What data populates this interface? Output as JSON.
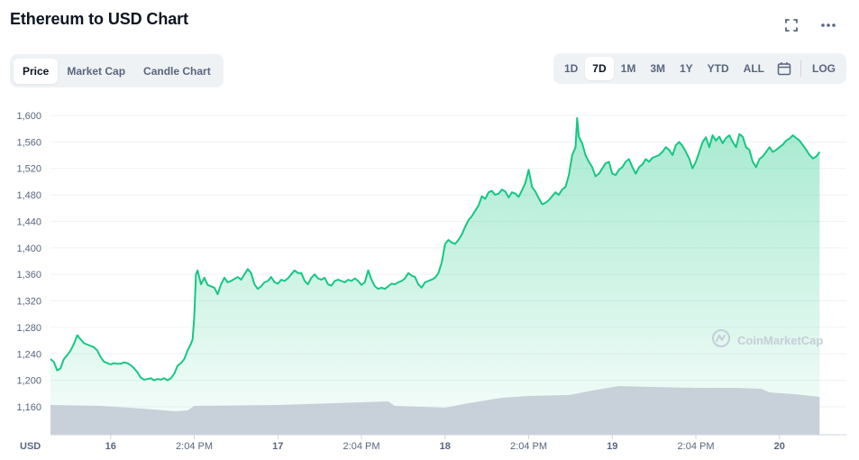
{
  "header": {
    "title": "Ethereum to USD Chart"
  },
  "icons": {
    "fullscreen": "fullscreen-icon",
    "more": "more-horizontal-icon",
    "calendar": "calendar-icon"
  },
  "tabs": [
    {
      "label": "Price",
      "active": true
    },
    {
      "label": "Market Cap",
      "active": false
    },
    {
      "label": "Candle Chart",
      "active": false
    }
  ],
  "ranges": [
    {
      "label": "1D",
      "active": false
    },
    {
      "label": "7D",
      "active": true
    },
    {
      "label": "1M",
      "active": false
    },
    {
      "label": "3M",
      "active": false
    },
    {
      "label": "1Y",
      "active": false
    },
    {
      "label": "YTD",
      "active": false
    },
    {
      "label": "ALL",
      "active": false
    }
  ],
  "log_label": "LOG",
  "watermark": "CoinMarketCap",
  "colors": {
    "line": "#16c784",
    "area_top": "#16c784",
    "volume": "#c3cbd6",
    "grid": "#eff2f5"
  },
  "chart_data": {
    "type": "line",
    "title": "Ethereum to USD Chart",
    "currency_label": "USD",
    "y_ticks": [
      "1,600",
      "1,560",
      "1,520",
      "1,480",
      "1,440",
      "1,400",
      "1,360",
      "1,320",
      "1,280",
      "1,240",
      "1,200",
      "1,160"
    ],
    "ylim": [
      1135,
      1605
    ],
    "xlim": [
      0,
      4.76
    ],
    "x_ticks": [
      {
        "x": 0.36,
        "label": "16",
        "day": true
      },
      {
        "x": 0.86,
        "label": "2:04 PM",
        "day": false
      },
      {
        "x": 1.36,
        "label": "17",
        "day": true
      },
      {
        "x": 1.86,
        "label": "2:04 PM",
        "day": false
      },
      {
        "x": 2.36,
        "label": "18",
        "day": true
      },
      {
        "x": 2.86,
        "label": "2:04 PM",
        "day": false
      },
      {
        "x": 3.36,
        "label": "19",
        "day": true
      },
      {
        "x": 3.86,
        "label": "2:04 PM",
        "day": false
      },
      {
        "x": 4.36,
        "label": "20",
        "day": true
      }
    ],
    "grid": true,
    "series": [
      {
        "values": [
          [
            0.0,
            1232
          ],
          [
            0.02,
            1228
          ],
          [
            0.04,
            1215
          ],
          [
            0.06,
            1218
          ],
          [
            0.08,
            1232
          ],
          [
            0.1,
            1238
          ],
          [
            0.12,
            1245
          ],
          [
            0.14,
            1255
          ],
          [
            0.16,
            1268
          ],
          [
            0.18,
            1262
          ],
          [
            0.2,
            1256
          ],
          [
            0.22,
            1254
          ],
          [
            0.24,
            1252
          ],
          [
            0.26,
            1250
          ],
          [
            0.28,
            1245
          ],
          [
            0.3,
            1235
          ],
          [
            0.32,
            1228
          ],
          [
            0.34,
            1226
          ],
          [
            0.36,
            1224
          ],
          [
            0.38,
            1226
          ],
          [
            0.4,
            1225
          ],
          [
            0.42,
            1225
          ],
          [
            0.44,
            1227
          ],
          [
            0.46,
            1226
          ],
          [
            0.48,
            1223
          ],
          [
            0.5,
            1218
          ],
          [
            0.52,
            1212
          ],
          [
            0.54,
            1204
          ],
          [
            0.56,
            1201
          ],
          [
            0.58,
            1202
          ],
          [
            0.6,
            1203
          ],
          [
            0.62,
            1200
          ],
          [
            0.64,
            1202
          ],
          [
            0.66,
            1201
          ],
          [
            0.68,
            1203
          ],
          [
            0.7,
            1200
          ],
          [
            0.72,
            1203
          ],
          [
            0.74,
            1210
          ],
          [
            0.76,
            1222
          ],
          [
            0.78,
            1226
          ],
          [
            0.8,
            1232
          ],
          [
            0.82,
            1245
          ],
          [
            0.84,
            1255
          ],
          [
            0.85,
            1262
          ],
          [
            0.86,
            1295
          ],
          [
            0.87,
            1360
          ],
          [
            0.88,
            1366
          ],
          [
            0.9,
            1345
          ],
          [
            0.92,
            1355
          ],
          [
            0.94,
            1344
          ],
          [
            0.96,
            1342
          ],
          [
            0.98,
            1340
          ],
          [
            1.0,
            1330
          ],
          [
            1.02,
            1345
          ],
          [
            1.04,
            1355
          ],
          [
            1.06,
            1348
          ],
          [
            1.08,
            1350
          ],
          [
            1.1,
            1353
          ],
          [
            1.12,
            1356
          ],
          [
            1.14,
            1352
          ],
          [
            1.16,
            1360
          ],
          [
            1.18,
            1368
          ],
          [
            1.2,
            1362
          ],
          [
            1.22,
            1345
          ],
          [
            1.24,
            1338
          ],
          [
            1.26,
            1342
          ],
          [
            1.28,
            1348
          ],
          [
            1.3,
            1350
          ],
          [
            1.32,
            1356
          ],
          [
            1.34,
            1348
          ],
          [
            1.36,
            1346
          ],
          [
            1.38,
            1352
          ],
          [
            1.4,
            1350
          ],
          [
            1.42,
            1354
          ],
          [
            1.44,
            1360
          ],
          [
            1.46,
            1366
          ],
          [
            1.48,
            1362
          ],
          [
            1.5,
            1362
          ],
          [
            1.52,
            1350
          ],
          [
            1.54,
            1345
          ],
          [
            1.56,
            1355
          ],
          [
            1.58,
            1360
          ],
          [
            1.6,
            1354
          ],
          [
            1.62,
            1352
          ],
          [
            1.64,
            1355
          ],
          [
            1.66,
            1345
          ],
          [
            1.68,
            1343
          ],
          [
            1.7,
            1350
          ],
          [
            1.72,
            1352
          ],
          [
            1.74,
            1350
          ],
          [
            1.76,
            1348
          ],
          [
            1.78,
            1352
          ],
          [
            1.8,
            1350
          ],
          [
            1.82,
            1354
          ],
          [
            1.84,
            1350
          ],
          [
            1.86,
            1344
          ],
          [
            1.88,
            1348
          ],
          [
            1.9,
            1366
          ],
          [
            1.92,
            1352
          ],
          [
            1.94,
            1342
          ],
          [
            1.96,
            1338
          ],
          [
            1.98,
            1340
          ],
          [
            2.0,
            1338
          ],
          [
            2.02,
            1342
          ],
          [
            2.04,
            1346
          ],
          [
            2.06,
            1345
          ],
          [
            2.08,
            1348
          ],
          [
            2.1,
            1350
          ],
          [
            2.12,
            1354
          ],
          [
            2.14,
            1362
          ],
          [
            2.16,
            1358
          ],
          [
            2.18,
            1356
          ],
          [
            2.2,
            1345
          ],
          [
            2.22,
            1340
          ],
          [
            2.24,
            1348
          ],
          [
            2.26,
            1350
          ],
          [
            2.28,
            1352
          ],
          [
            2.3,
            1355
          ],
          [
            2.32,
            1362
          ],
          [
            2.34,
            1378
          ],
          [
            2.36,
            1406
          ],
          [
            2.38,
            1412
          ],
          [
            2.4,
            1408
          ],
          [
            2.42,
            1406
          ],
          [
            2.44,
            1412
          ],
          [
            2.46,
            1420
          ],
          [
            2.48,
            1432
          ],
          [
            2.5,
            1442
          ],
          [
            2.52,
            1448
          ],
          [
            2.54,
            1456
          ],
          [
            2.56,
            1464
          ],
          [
            2.58,
            1478
          ],
          [
            2.6,
            1474
          ],
          [
            2.62,
            1484
          ],
          [
            2.64,
            1486
          ],
          [
            2.66,
            1480
          ],
          [
            2.68,
            1482
          ],
          [
            2.7,
            1488
          ],
          [
            2.72,
            1485
          ],
          [
            2.74,
            1476
          ],
          [
            2.76,
            1484
          ],
          [
            2.78,
            1482
          ],
          [
            2.8,
            1477
          ],
          [
            2.82,
            1487
          ],
          [
            2.84,
            1498
          ],
          [
            2.86,
            1518
          ],
          [
            2.88,
            1492
          ],
          [
            2.9,
            1485
          ],
          [
            2.92,
            1475
          ],
          [
            2.94,
            1466
          ],
          [
            2.96,
            1468
          ],
          [
            2.98,
            1472
          ],
          [
            3.0,
            1478
          ],
          [
            3.02,
            1484
          ],
          [
            3.04,
            1480
          ],
          [
            3.06,
            1488
          ],
          [
            3.08,
            1492
          ],
          [
            3.1,
            1510
          ],
          [
            3.12,
            1540
          ],
          [
            3.14,
            1552
          ],
          [
            3.15,
            1596
          ],
          [
            3.16,
            1568
          ],
          [
            3.18,
            1558
          ],
          [
            3.2,
            1540
          ],
          [
            3.22,
            1530
          ],
          [
            3.24,
            1522
          ],
          [
            3.26,
            1508
          ],
          [
            3.28,
            1512
          ],
          [
            3.3,
            1520
          ],
          [
            3.32,
            1528
          ],
          [
            3.34,
            1530
          ],
          [
            3.36,
            1512
          ],
          [
            3.38,
            1510
          ],
          [
            3.4,
            1518
          ],
          [
            3.42,
            1522
          ],
          [
            3.44,
            1530
          ],
          [
            3.46,
            1534
          ],
          [
            3.48,
            1522
          ],
          [
            3.5,
            1512
          ],
          [
            3.52,
            1522
          ],
          [
            3.54,
            1526
          ],
          [
            3.56,
            1534
          ],
          [
            3.58,
            1530
          ],
          [
            3.6,
            1536
          ],
          [
            3.62,
            1538
          ],
          [
            3.64,
            1540
          ],
          [
            3.66,
            1545
          ],
          [
            3.68,
            1552
          ],
          [
            3.7,
            1548
          ],
          [
            3.72,
            1540
          ],
          [
            3.74,
            1555
          ],
          [
            3.76,
            1560
          ],
          [
            3.78,
            1554
          ],
          [
            3.8,
            1545
          ],
          [
            3.82,
            1535
          ],
          [
            3.84,
            1520
          ],
          [
            3.86,
            1530
          ],
          [
            3.88,
            1545
          ],
          [
            3.9,
            1560
          ],
          [
            3.92,
            1567
          ],
          [
            3.94,
            1552
          ],
          [
            3.96,
            1570
          ],
          [
            3.98,
            1562
          ],
          [
            4.0,
            1568
          ],
          [
            4.02,
            1558
          ],
          [
            4.04,
            1566
          ],
          [
            4.06,
            1570
          ],
          [
            4.08,
            1560
          ],
          [
            4.1,
            1552
          ],
          [
            4.12,
            1572
          ],
          [
            4.14,
            1568
          ],
          [
            4.16,
            1552
          ],
          [
            4.18,
            1548
          ],
          [
            4.2,
            1530
          ],
          [
            4.22,
            1522
          ],
          [
            4.24,
            1534
          ],
          [
            4.26,
            1538
          ],
          [
            4.28,
            1545
          ],
          [
            4.3,
            1552
          ],
          [
            4.32,
            1545
          ],
          [
            4.34,
            1548
          ],
          [
            4.36,
            1552
          ],
          [
            4.38,
            1556
          ],
          [
            4.4,
            1562
          ],
          [
            4.42,
            1565
          ],
          [
            4.44,
            1570
          ],
          [
            4.46,
            1566
          ],
          [
            4.48,
            1562
          ],
          [
            4.5,
            1555
          ],
          [
            4.52,
            1548
          ],
          [
            4.54,
            1540
          ],
          [
            4.56,
            1535
          ],
          [
            4.58,
            1538
          ],
          [
            4.6,
            1545
          ]
        ]
      }
    ]
  },
  "axis": {
    "currency": "USD"
  }
}
